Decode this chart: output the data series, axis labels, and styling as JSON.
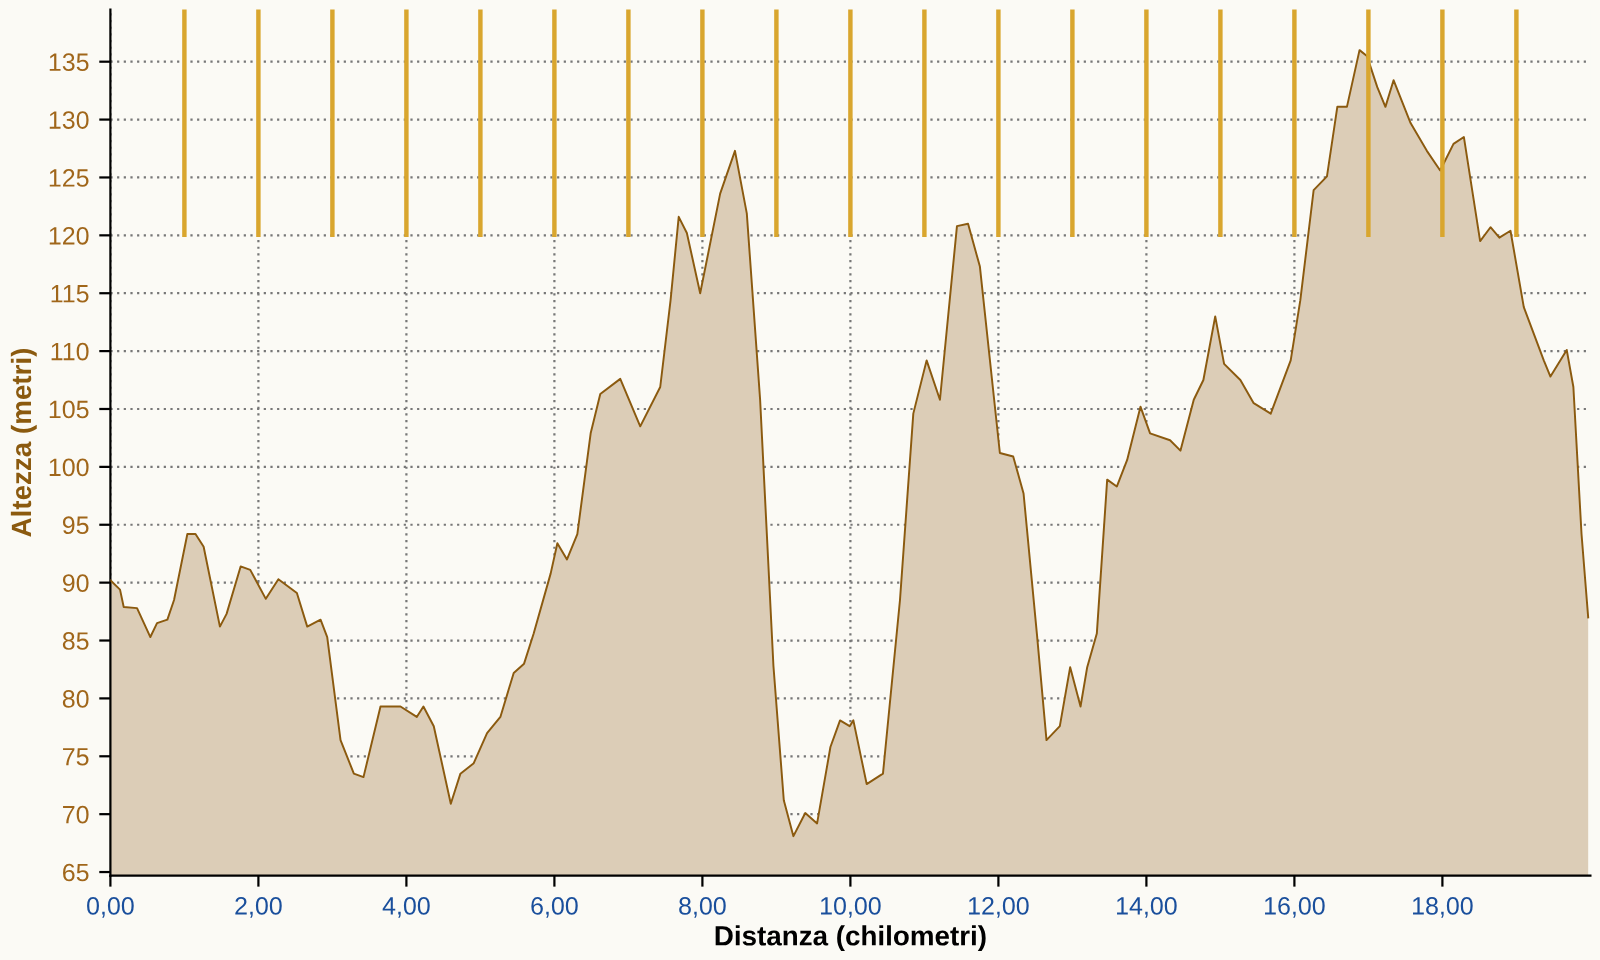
{
  "chart_data": {
    "type": "area",
    "xlabel": "Distanza (chilometri)",
    "ylabel": "Altezza (metri)",
    "x": [
      0,
      0.13,
      0.18,
      0.36,
      0.54,
      0.63,
      0.77,
      0.86,
      1.04,
      1.15,
      1.26,
      1.48,
      1.57,
      1.76,
      1.89,
      2.1,
      2.27,
      2.52,
      2.66,
      2.84,
      2.93,
      3.11,
      3.29,
      3.42,
      3.65,
      3.92,
      4.14,
      4.23,
      4.37,
      4.6,
      4.73,
      4.91,
      5.09,
      5.27,
      5.45,
      5.59,
      5.72,
      5.95,
      6.04,
      6.17,
      6.31,
      6.49,
      6.62,
      6.89,
      7.16,
      7.43,
      7.57,
      7.68,
      7.79,
      7.97,
      8.24,
      8.44,
      8.6,
      8.78,
      8.96,
      9.1,
      9.23,
      9.39,
      9.55,
      9.73,
      9.86,
      9.99,
      10.04,
      10.22,
      10.44,
      10.67,
      10.85,
      11.03,
      11.21,
      11.44,
      11.59,
      11.75,
      12.02,
      12.2,
      12.34,
      12.52,
      12.65,
      12.83,
      12.97,
      13.11,
      13.2,
      13.33,
      13.47,
      13.6,
      13.74,
      13.92,
      14.05,
      14.32,
      14.46,
      14.64,
      14.77,
      14.93,
      15.05,
      15.27,
      15.45,
      15.68,
      15.95,
      16.08,
      16.26,
      16.44,
      16.58,
      16.71,
      16.88,
      16.98,
      17.12,
      17.23,
      17.34,
      17.57,
      17.79,
      17.97,
      18.15,
      18.29,
      18.51,
      18.65,
      18.77,
      18.92,
      19.1,
      19.37,
      19.46,
      19.68,
      19.77,
      19.88,
      19.97
    ],
    "series": [
      {
        "color": "#8b5a0f",
        "values": [
          90.2,
          89.4,
          87.9,
          87.8,
          85.3,
          86.5,
          86.8,
          88.5,
          94.2,
          94.2,
          93.1,
          86.2,
          87.3,
          91.4,
          91.1,
          88.6,
          90.3,
          89.1,
          86.2,
          86.8,
          85.3,
          76.4,
          73.5,
          73.2,
          79.3,
          79.3,
          78.4,
          79.3,
          77.6,
          70.9,
          73.5,
          74.4,
          77.0,
          78.4,
          82.2,
          83.0,
          85.6,
          90.8,
          93.4,
          92.0,
          94.2,
          102.9,
          106.3,
          107.6,
          103.5,
          106.9,
          114.4,
          121.6,
          120.2,
          115.0,
          123.6,
          127.3,
          121.9,
          105.8,
          82.8,
          71.2,
          68.1,
          70.1,
          69.2,
          75.8,
          78.1,
          77.6,
          78.1,
          72.6,
          73.5,
          88.5,
          104.6,
          109.2,
          105.8,
          120.8,
          121.0,
          117.3,
          101.2,
          100.9,
          97.7,
          85.6,
          76.4,
          77.6,
          82.7,
          79.3,
          82.7,
          85.6,
          98.9,
          98.3,
          100.6,
          105.2,
          102.9,
          102.3,
          101.4,
          105.8,
          107.5,
          113.0,
          108.9,
          107.5,
          105.5,
          104.6,
          109.2,
          114.4,
          123.9,
          125.1,
          131.1,
          131.1,
          136.0,
          135.5,
          132.8,
          131.1,
          133.4,
          129.7,
          127.3,
          125.6,
          127.9,
          128.5,
          119.5,
          120.7,
          119.8,
          120.4,
          113.8,
          109.2,
          107.8,
          110.1,
          106.9,
          94.2,
          87.0
        ]
      }
    ],
    "xlim": [
      0,
      20
    ],
    "ylim": [
      64.7,
      139.5
    ],
    "xticks": [
      {
        "value": 0,
        "label": "0,00"
      },
      {
        "value": 2,
        "label": "2,00"
      },
      {
        "value": 4,
        "label": "4,00"
      },
      {
        "value": 6,
        "label": "6,00"
      },
      {
        "value": 8,
        "label": "8,00"
      },
      {
        "value": 10,
        "label": "10,00"
      },
      {
        "value": 12,
        "label": "12,00"
      },
      {
        "value": 14,
        "label": "14,00"
      },
      {
        "value": 16,
        "label": "16,00"
      },
      {
        "value": 18,
        "label": "18,00"
      }
    ],
    "yticks": [
      65,
      70,
      75,
      80,
      85,
      90,
      95,
      100,
      105,
      110,
      115,
      120,
      125,
      130,
      135
    ],
    "ref_lines": [
      {
        "axis": "x",
        "value": 1,
        "color": "#d9a62e"
      },
      {
        "axis": "x",
        "value": 2,
        "color": "#d9a62e"
      },
      {
        "axis": "x",
        "value": 3,
        "color": "#d9a62e"
      },
      {
        "axis": "x",
        "value": 4,
        "color": "#d9a62e"
      },
      {
        "axis": "x",
        "value": 5,
        "color": "#d9a62e"
      },
      {
        "axis": "x",
        "value": 6,
        "color": "#d9a62e"
      },
      {
        "axis": "x",
        "value": 7,
        "color": "#d9a62e"
      },
      {
        "axis": "x",
        "value": 8,
        "color": "#d9a62e"
      },
      {
        "axis": "x",
        "value": 9,
        "color": "#d9a62e"
      },
      {
        "axis": "x",
        "value": 10,
        "color": "#d9a62e"
      },
      {
        "axis": "x",
        "value": 11,
        "color": "#d9a62e"
      },
      {
        "axis": "x",
        "value": 12,
        "color": "#d9a62e"
      },
      {
        "axis": "x",
        "value": 13,
        "color": "#d9a62e"
      },
      {
        "axis": "x",
        "value": 14,
        "color": "#d9a62e"
      },
      {
        "axis": "x",
        "value": 15,
        "color": "#d9a62e"
      },
      {
        "axis": "x",
        "value": 16,
        "color": "#d9a62e"
      },
      {
        "axis": "x",
        "value": 17,
        "color": "#d9a62e"
      },
      {
        "axis": "x",
        "value": 18,
        "color": "#d9a62e"
      },
      {
        "axis": "x",
        "value": 19,
        "color": "#d9a62e"
      }
    ],
    "grid": true,
    "legend": false,
    "marker": "none",
    "line_style": "solid"
  }
}
